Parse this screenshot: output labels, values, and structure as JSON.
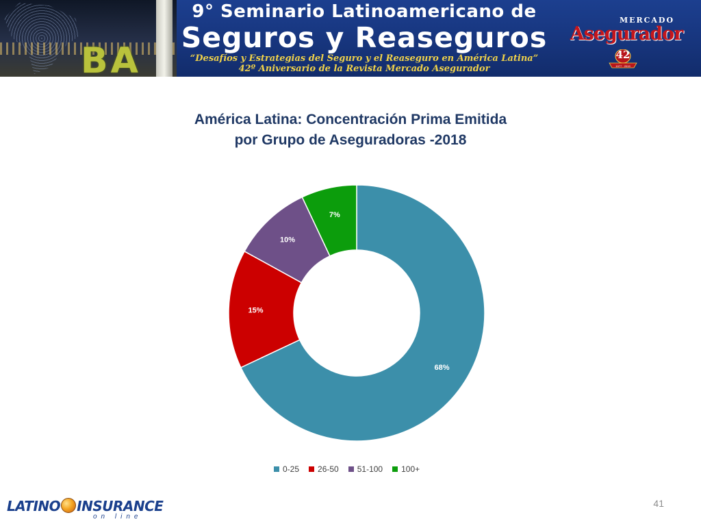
{
  "banner": {
    "line1": "9° Seminario Latinoamericano de",
    "line2": "Seguros y Reaseguros",
    "line3": "“Desafíos y Estrategias del Seguro y el Reaseguro en América Latina”",
    "line4": "42º Aniversario de la Revista Mercado Asegurador",
    "photo_text": "BA",
    "brand_small": "MERCADO",
    "brand_big": "Asegurador",
    "seal_number": "42",
    "seal_years": "1977 · 2019"
  },
  "chart_data": {
    "type": "pie",
    "style": "doughnut",
    "title_lines": [
      "América Latina: Concentración Prima Emitida",
      "por Grupo de Aseguradoras -2018"
    ],
    "categories": [
      "0-25",
      "26-50",
      "51-100",
      "100+"
    ],
    "values": [
      68,
      15,
      10,
      7
    ],
    "labels": [
      "68%",
      "15%",
      "10%",
      "7%"
    ],
    "colors": [
      "#3c8faa",
      "#cc0000",
      "#6e5088",
      "#0c9d0c"
    ],
    "legend_position": "bottom"
  },
  "footer": {
    "logo_left": "LATINO",
    "logo_right": "INSURANCE",
    "logo_sub": "on line",
    "slide_number": "41"
  }
}
